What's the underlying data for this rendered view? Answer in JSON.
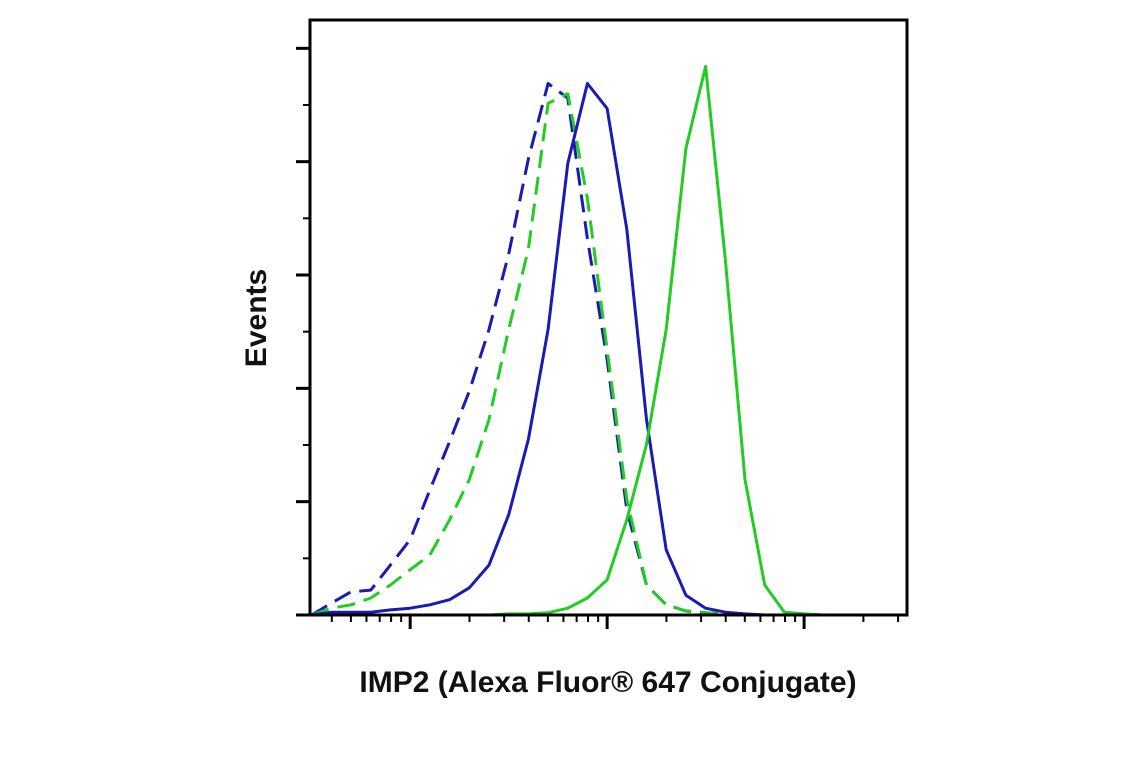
{
  "chart_data": {
    "type": "line",
    "x_label": "IMP2 (Alexa Fluor® 647 Conjugate)",
    "y_label": "Events",
    "x_scale": "log",
    "xlim": [
      31,
      33300
    ],
    "xticks": [
      100,
      1000,
      10000
    ],
    "xminor": [
      40,
      50,
      60,
      70,
      80,
      90,
      200,
      300,
      400,
      500,
      600,
      700,
      800,
      900,
      2000,
      3000,
      4000,
      5000,
      6000,
      7000,
      8000,
      9000,
      20000,
      30000
    ],
    "ylim": [
      0,
      105
    ],
    "yticks": [
      0,
      20,
      40,
      60,
      80,
      100
    ],
    "yminor": [
      10,
      30,
      50,
      70,
      90
    ],
    "x": [
      31.6,
      39.8,
      50.1,
      63.1,
      79.4,
      100,
      125.9,
      158.5,
      199.5,
      251.2,
      316.2,
      398.1,
      501.2,
      631,
      794.3,
      1000,
      1259,
      1585,
      1995,
      2512,
      3162,
      3981,
      5012,
      6310,
      7943,
      10000,
      12589,
      15849,
      19953,
      25119,
      31623
    ],
    "series": [
      {
        "color": "#1a1ab4",
        "dashed": true,
        "values": [
          0,
          2.1,
          4.1,
          4.4,
          8.8,
          13.3,
          22.1,
          30.6,
          39.5,
          50.4,
          63.7,
          80.5,
          93.8,
          91.2,
          66.4,
          45.1,
          18.6,
          5.3,
          1.8,
          0.7,
          0.4,
          0.2,
          0,
          0,
          0,
          0,
          0,
          0,
          0,
          0,
          0
        ]
      },
      {
        "color": "#22cc22",
        "dashed": true,
        "values": [
          0,
          1.2,
          1.8,
          3.0,
          5.3,
          8.0,
          10.6,
          16.8,
          23.9,
          34.5,
          50.4,
          64.6,
          90.3,
          92.0,
          73.5,
          46.9,
          20.4,
          5.3,
          1.8,
          0.7,
          0.4,
          0.2,
          0,
          0,
          0,
          0,
          0,
          0,
          0,
          0,
          0
        ]
      },
      {
        "color": "#1a1ab4",
        "dashed": false,
        "values": [
          0,
          0.5,
          0.5,
          0.5,
          0.9,
          1.2,
          1.8,
          2.7,
          4.8,
          8.8,
          17.7,
          31.0,
          50.4,
          79.7,
          93.8,
          89.4,
          68.1,
          34.5,
          11.5,
          3.5,
          1.2,
          0.5,
          0.2,
          0,
          0,
          0,
          0,
          0,
          0,
          0,
          0
        ]
      },
      {
        "color": "#22cc22",
        "dashed": false,
        "values": [
          0,
          0,
          0,
          0,
          0,
          0,
          0,
          0,
          0,
          0,
          0.2,
          0.2,
          0.4,
          1.2,
          3.0,
          6.2,
          16.8,
          30.1,
          50.4,
          82.3,
          96.8,
          62.8,
          23.9,
          5.3,
          0.5,
          0.2,
          0,
          0,
          0,
          0,
          0
        ]
      }
    ]
  }
}
